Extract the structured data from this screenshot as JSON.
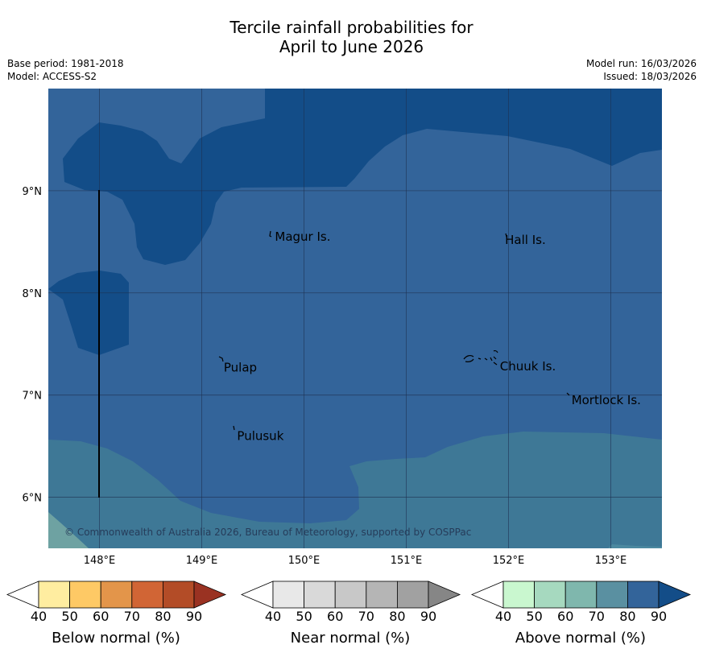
{
  "title": {
    "line1": "Tercile rainfall probabilities for",
    "line2": "April to June 2026"
  },
  "meta": {
    "base_period": "Base period: 1981-2018",
    "model": "Model: ACCESS-S2",
    "model_run": "Model run: 16/03/2026",
    "issued": "Issued: 18/03/2026"
  },
  "map": {
    "lon_range": [
      147.5,
      153.5
    ],
    "lat_range": [
      5.5,
      10.0
    ],
    "lat_ticks": [
      {
        "value": 9,
        "label": "9°N"
      },
      {
        "value": 8,
        "label": "8°N"
      },
      {
        "value": 7,
        "label": "7°N"
      },
      {
        "value": 6,
        "label": "6°N"
      }
    ],
    "lon_ticks": [
      {
        "value": 148,
        "label": "148°E"
      },
      {
        "value": 149,
        "label": "149°E"
      },
      {
        "value": 150,
        "label": "150°E"
      },
      {
        "value": 151,
        "label": "151°E"
      },
      {
        "value": 152,
        "label": "152°E"
      },
      {
        "value": 153,
        "label": "153°E"
      }
    ],
    "places": [
      {
        "name": "Magur Is.",
        "lon": 149.7,
        "lat": 8.55
      },
      {
        "name": "Hall Is.",
        "lon": 151.95,
        "lat": 8.52
      },
      {
        "name": "Pulap",
        "lon": 149.2,
        "lat": 7.27
      },
      {
        "name": "Chuuk Is.",
        "lon": 151.9,
        "lat": 7.28
      },
      {
        "name": "Mortlock Is.",
        "lon": 152.6,
        "lat": 6.95
      },
      {
        "name": "Pulusuk",
        "lon": 149.33,
        "lat": 6.6
      }
    ],
    "copyright": "© Commonwealth of Australia 2026, Bureau of Meteorology, supported by COSPPac",
    "colors": {
      "above_70": "#3e7896",
      "above_80": "#33649a",
      "above_90": "#134d88",
      "grid": "#1e2f4e"
    }
  },
  "colorbars": [
    {
      "title": "Below normal (%)",
      "ticks": [
        "40",
        "50",
        "60",
        "70",
        "80",
        "90"
      ],
      "colors": [
        "#ffffff",
        "#ffeda0",
        "#fec965",
        "#e3954a",
        "#d16535",
        "#b34c27",
        "#9a3222"
      ]
    },
    {
      "title": "Near normal (%)",
      "ticks": [
        "40",
        "50",
        "60",
        "70",
        "80",
        "90"
      ],
      "colors": [
        "#ffffff",
        "#e8e8e8",
        "#d9d9d9",
        "#c8c8c8",
        "#b5b5b5",
        "#a1a1a1",
        "#868686"
      ]
    },
    {
      "title": "Above normal (%)",
      "ticks": [
        "40",
        "50",
        "60",
        "70",
        "80",
        "90"
      ],
      "colors": [
        "#ffffff",
        "#c9f7cf",
        "#a6d9bf",
        "#7fb7ad",
        "#5a90a1",
        "#33649a",
        "#134d88"
      ]
    }
  ]
}
